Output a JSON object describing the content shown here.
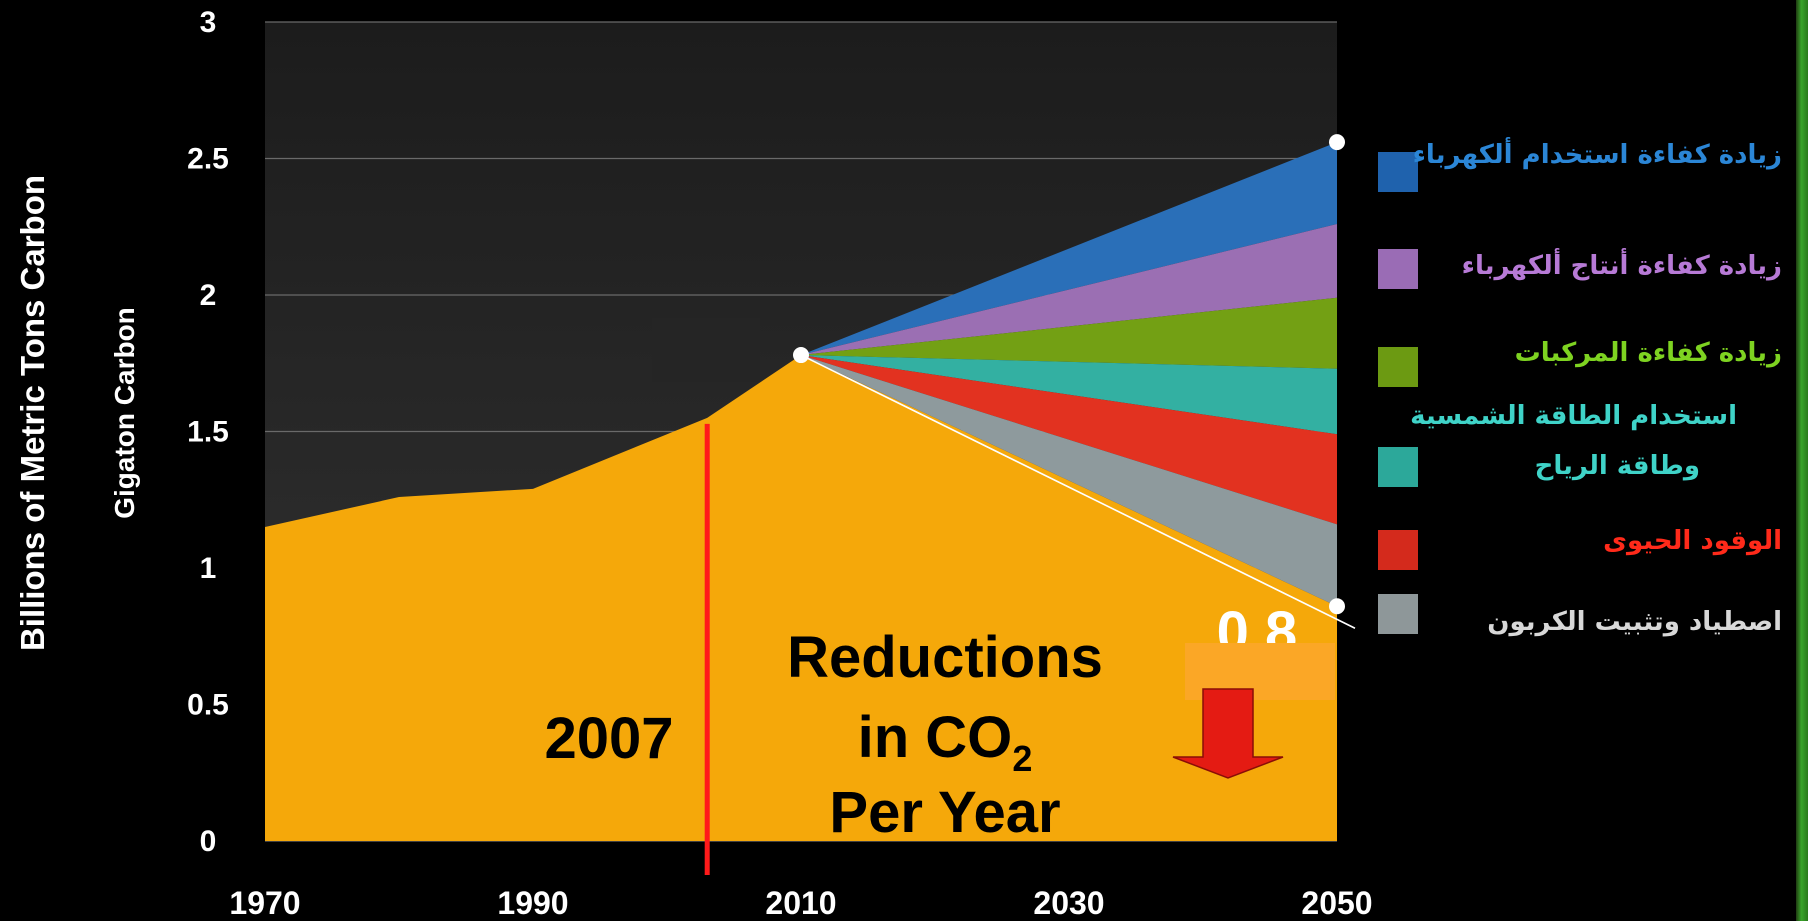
{
  "chart_data": {
    "type": "area",
    "y_outer_label": "Billions of Metric Tons Carbon",
    "y_inner_label": "Gigaton Carbon",
    "ylim": [
      0,
      3
    ],
    "y_ticks": [
      "0",
      "0.5",
      "1",
      "1.5",
      "2",
      "2.5",
      "3"
    ],
    "xlim": [
      1970,
      2050
    ],
    "x_ticks": [
      "1970",
      "1990",
      "2010",
      "2030",
      "2050"
    ],
    "grid": true,
    "historical": {
      "x": [
        1970,
        1980,
        1990,
        2000,
        2003,
        2010
      ],
      "y": [
        1.15,
        1.26,
        1.29,
        1.49,
        1.55,
        1.78
      ]
    },
    "wedge_start": {
      "x": 2010,
      "y": 1.78
    },
    "projection_2050": {
      "x": 2050,
      "y": 2.56
    },
    "target_2050": {
      "x": 2050,
      "y": 0.86
    },
    "wedges": [
      {
        "name": "زيادة كفاءة استخدام ألكهرباء",
        "top": 2.56,
        "bottom": 2.26,
        "color": "#2a6fb8",
        "legend_color": "#1f62ad",
        "label_color": "#2b86d6"
      },
      {
        "name": "زيادة كفاءة أنتاج ألكهرباء",
        "top": 2.26,
        "bottom": 1.99,
        "color": "#9b6fb3",
        "legend_color": "#9a6cb5",
        "label_color": "#b77ad6"
      },
      {
        "name": "زيادة كفاءة المركبات",
        "top": 1.99,
        "bottom": 1.73,
        "color": "#73a014",
        "legend_color": "#6c9a12",
        "label_color": "#7ed321"
      },
      {
        "name": "استخدام الطاقة الشمسية وطاقة الرياح",
        "top": 1.73,
        "bottom": 1.49,
        "color": "#33b0a2",
        "legend_color": "#2ca89a",
        "label_color": "#3fd3c8"
      },
      {
        "name": "الوقود الحيوى",
        "top": 1.49,
        "bottom": 1.16,
        "color": "#e23220",
        "legend_color": "#d42a1c",
        "label_color": "#ff2a1a"
      },
      {
        "name": "اصطياد وتثبيت الكربون",
        "top": 1.16,
        "bottom": 0.86,
        "color": "#8e9a9d",
        "legend_color": "#8e9799",
        "label_color": "#d8d8d8"
      }
    ],
    "marker_2007": {
      "label": "2007",
      "x": 2003
    },
    "reductions_label": {
      "line1": "Reductions",
      "line2_main": "in CO",
      "line2_sub": "2",
      "line3": "Per Year"
    },
    "target_value_partial": "0.8",
    "colors": {
      "background": "#000000",
      "plot_bg": "#262626",
      "area": "#f5a80a",
      "marker_line": "#ff1a1a",
      "arrow": "#e41b13"
    }
  }
}
